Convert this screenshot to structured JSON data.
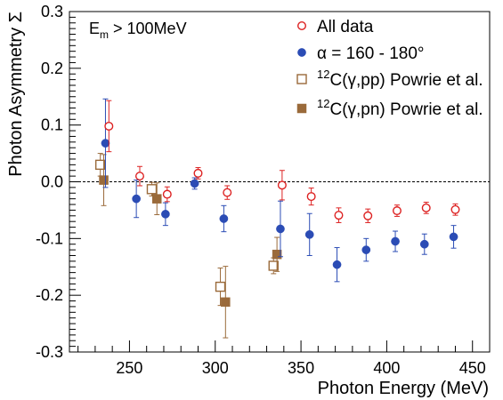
{
  "chart_data": {
    "type": "scatter",
    "xlabel": "Photon Energy (MeV)",
    "ylabel": "Photon Asymmetry Σ",
    "annotation": {
      "main": "E",
      "sub": "m",
      "rest": " > 100MeV"
    },
    "xlim": [
      215,
      460
    ],
    "ylim": [
      -0.3,
      0.3
    ],
    "xticks": [
      250,
      300,
      350,
      400,
      450
    ],
    "yticks": [
      -0.3,
      -0.2,
      -0.1,
      0.0,
      0.1,
      0.2,
      0.3
    ],
    "ytick_labels": [
      "-0.3",
      "-0.2",
      "-0.1",
      "0.0",
      "0.1",
      "0.2",
      "0.3"
    ],
    "zero_line": true,
    "legend_position": "top-right",
    "series": [
      {
        "legend_pre": "",
        "legend_sup": "",
        "legend_post": "All data",
        "marker": "open-circle",
        "color": "#dd2222",
        "points": [
          {
            "x": 238,
            "y": 0.098,
            "err": 0.045
          },
          {
            "x": 256,
            "y": 0.01,
            "err": 0.017
          },
          {
            "x": 272,
            "y": -0.022,
            "err": 0.013
          },
          {
            "x": 290,
            "y": 0.015,
            "err": 0.01
          },
          {
            "x": 307,
            "y": -0.019,
            "err": 0.012
          },
          {
            "x": 339,
            "y": -0.006,
            "err": 0.026
          },
          {
            "x": 356,
            "y": -0.026,
            "err": 0.015
          },
          {
            "x": 372,
            "y": -0.059,
            "err": 0.013
          },
          {
            "x": 389,
            "y": -0.06,
            "err": 0.012
          },
          {
            "x": 406,
            "y": -0.051,
            "err": 0.01
          },
          {
            "x": 423,
            "y": -0.046,
            "err": 0.01
          },
          {
            "x": 440,
            "y": -0.049,
            "err": 0.01
          }
        ]
      },
      {
        "legend_pre": "α = 160 - 180°",
        "legend_sup": "",
        "legend_post": "",
        "marker": "filled-circle",
        "color": "#2b4cb5",
        "points": [
          {
            "x": 236,
            "y": 0.068,
            "err": 0.078
          },
          {
            "x": 254,
            "y": -0.03,
            "err": 0.033
          },
          {
            "x": 271,
            "y": -0.057,
            "err": 0.02
          },
          {
            "x": 288,
            "y": -0.003,
            "err": 0.01
          },
          {
            "x": 305,
            "y": -0.065,
            "err": 0.023
          },
          {
            "x": 338,
            "y": -0.083,
            "err": 0.049
          },
          {
            "x": 355,
            "y": -0.093,
            "err": 0.037
          },
          {
            "x": 371,
            "y": -0.146,
            "err": 0.03
          },
          {
            "x": 388,
            "y": -0.12,
            "err": 0.02
          },
          {
            "x": 405,
            "y": -0.105,
            "err": 0.018
          },
          {
            "x": 422,
            "y": -0.11,
            "err": 0.018
          },
          {
            "x": 439,
            "y": -0.097,
            "err": 0.02
          }
        ]
      },
      {
        "legend_pre": "",
        "legend_sup": "12",
        "legend_post": "C(γ,pp) Powrie et al.",
        "marker": "open-square",
        "color": "#9a6a3a",
        "points": [
          {
            "x": 233,
            "y": 0.03,
            "err": 0.02
          },
          {
            "x": 263,
            "y": -0.013,
            "err": 0.012
          },
          {
            "x": 303,
            "y": -0.185,
            "err": 0.033
          },
          {
            "x": 334,
            "y": -0.148,
            "err": 0.014
          }
        ]
      },
      {
        "legend_pre": "",
        "legend_sup": "12",
        "legend_post": "C(γ,pn) Powrie et al.",
        "marker": "filled-square",
        "color": "#9a6a3a",
        "points": [
          {
            "x": 235,
            "y": 0.003,
            "err": 0.045
          },
          {
            "x": 266,
            "y": -0.03,
            "err": 0.028
          },
          {
            "x": 306,
            "y": -0.212,
            "err": 0.063
          },
          {
            "x": 336,
            "y": -0.128,
            "err": 0.03
          }
        ]
      }
    ]
  }
}
